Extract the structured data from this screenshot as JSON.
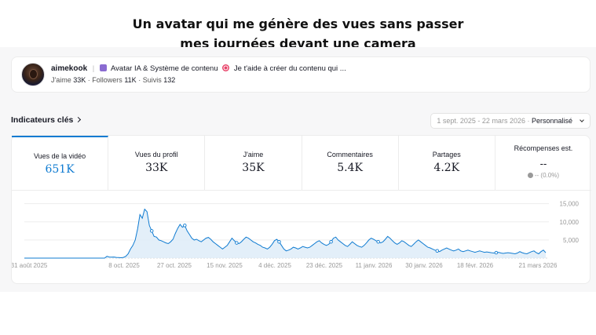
{
  "caption": {
    "line1": "Un avatar qui me génère des vues sans passer",
    "line2": "mes journées devant une camera"
  },
  "profile": {
    "username": "aimekook",
    "bio_part1": "Avatar IA & Système de contenu",
    "bio_part2": "Je t'aide à créer du contenu qui ...",
    "likes_label": "J'aime",
    "likes_value": "33K",
    "followers_label": "Followers",
    "followers_value": "11K",
    "following_label": "Suivis",
    "following_value": "132",
    "icons": [
      "avatar",
      "mask-icon",
      "target-icon"
    ]
  },
  "indicators": {
    "title": "Indicateurs clés",
    "date_range": "1 sept. 2025 - 22 mars 2026",
    "date_sep": " · ",
    "mode": "Personnalisé"
  },
  "tabs": [
    {
      "label": "Vues de la vidéo",
      "value": "651K",
      "active": true
    },
    {
      "label": "Vues du profil",
      "value": "33K"
    },
    {
      "label": "J'aime",
      "value": "35K"
    },
    {
      "label": "Commentaires",
      "value": "5.4K"
    },
    {
      "label": "Partages",
      "value": "4.2K"
    },
    {
      "label": "Récompenses est.",
      "value": "--",
      "sub": "-- (0.0%)"
    }
  ],
  "colors": {
    "accent": "#0f7bd1",
    "fill": "#dcebf8"
  },
  "chart_data": {
    "type": "area",
    "series": [
      {
        "values": [
          0,
          0,
          0,
          0,
          0,
          0,
          0,
          0,
          0,
          0,
          0,
          0,
          0,
          0,
          0,
          0,
          0,
          0,
          0,
          0,
          0,
          0,
          0,
          0,
          0,
          0,
          0,
          0,
          0,
          0,
          0,
          0,
          0,
          0,
          0,
          500,
          300,
          250,
          300,
          200,
          150,
          100,
          200,
          500,
          1200,
          2500,
          3500,
          5000,
          8000,
          12000,
          11000,
          13500,
          12800,
          9000,
          7500,
          6000,
          5800,
          5000,
          4800,
          4500,
          4200,
          4000,
          4500,
          5200,
          6800,
          8200,
          9300,
          8500,
          9000,
          7500,
          6500,
          5500,
          5000,
          5200,
          4800,
          4500,
          5000,
          5500,
          5700,
          5200,
          4500,
          4000,
          3500,
          3000,
          2500,
          3000,
          3500,
          4500,
          5500,
          4800,
          4200,
          4000,
          4500,
          5200,
          5800,
          5500,
          5000,
          4500,
          4200,
          3800,
          3500,
          3000,
          2800,
          2500,
          3000,
          3800,
          4800,
          5200,
          4500,
          3500,
          2500,
          2000,
          2200,
          2500,
          3000,
          2800,
          2500,
          2800,
          3200,
          3000,
          2800,
          3000,
          3500,
          4000,
          4500,
          4800,
          4200,
          3800,
          3500,
          3800,
          4500,
          5500,
          5800,
          5000,
          4500,
          4000,
          3500,
          3200,
          3800,
          4500,
          4000,
          3500,
          3200,
          3000,
          3500,
          4200,
          5000,
          5500,
          5200,
          4800,
          4500,
          4200,
          4500,
          5200,
          6000,
          5500,
          4800,
          4200,
          3800,
          4200,
          4800,
          4500,
          4000,
          3500,
          3200,
          3800,
          4500,
          5000,
          4500,
          4000,
          3500,
          3000,
          2800,
          2500,
          2200,
          2000,
          1800,
          2200,
          2500,
          2800,
          2500,
          2200,
          2000,
          2200,
          2500,
          2000,
          1800,
          2000,
          2200,
          2000,
          1800,
          1600,
          1800,
          2000,
          1800,
          1600,
          1700,
          1600,
          1500,
          1400,
          1500,
          1600,
          1400,
          1300,
          1400,
          1500,
          1400,
          1300,
          1200,
          1400,
          1800,
          1500,
          1300,
          1200,
          1500,
          1800,
          2000,
          1500,
          1200,
          1800,
          2200,
          1500
        ]
      }
    ],
    "x_labels": [
      "31 août 2025",
      "8 oct. 2025",
      "27 oct. 2025",
      "15 nov. 2025",
      "4 déc. 2025",
      "23 déc. 2025",
      "11 janv. 2026",
      "30 janv. 2026",
      "18 févr. 2026",
      "21 mars 2026"
    ],
    "y_ticks": [
      15000,
      10000,
      5000
    ],
    "y_tick_labels": [
      "15,000",
      "10,000",
      "5,000"
    ],
    "ylim": [
      0,
      16000
    ]
  }
}
